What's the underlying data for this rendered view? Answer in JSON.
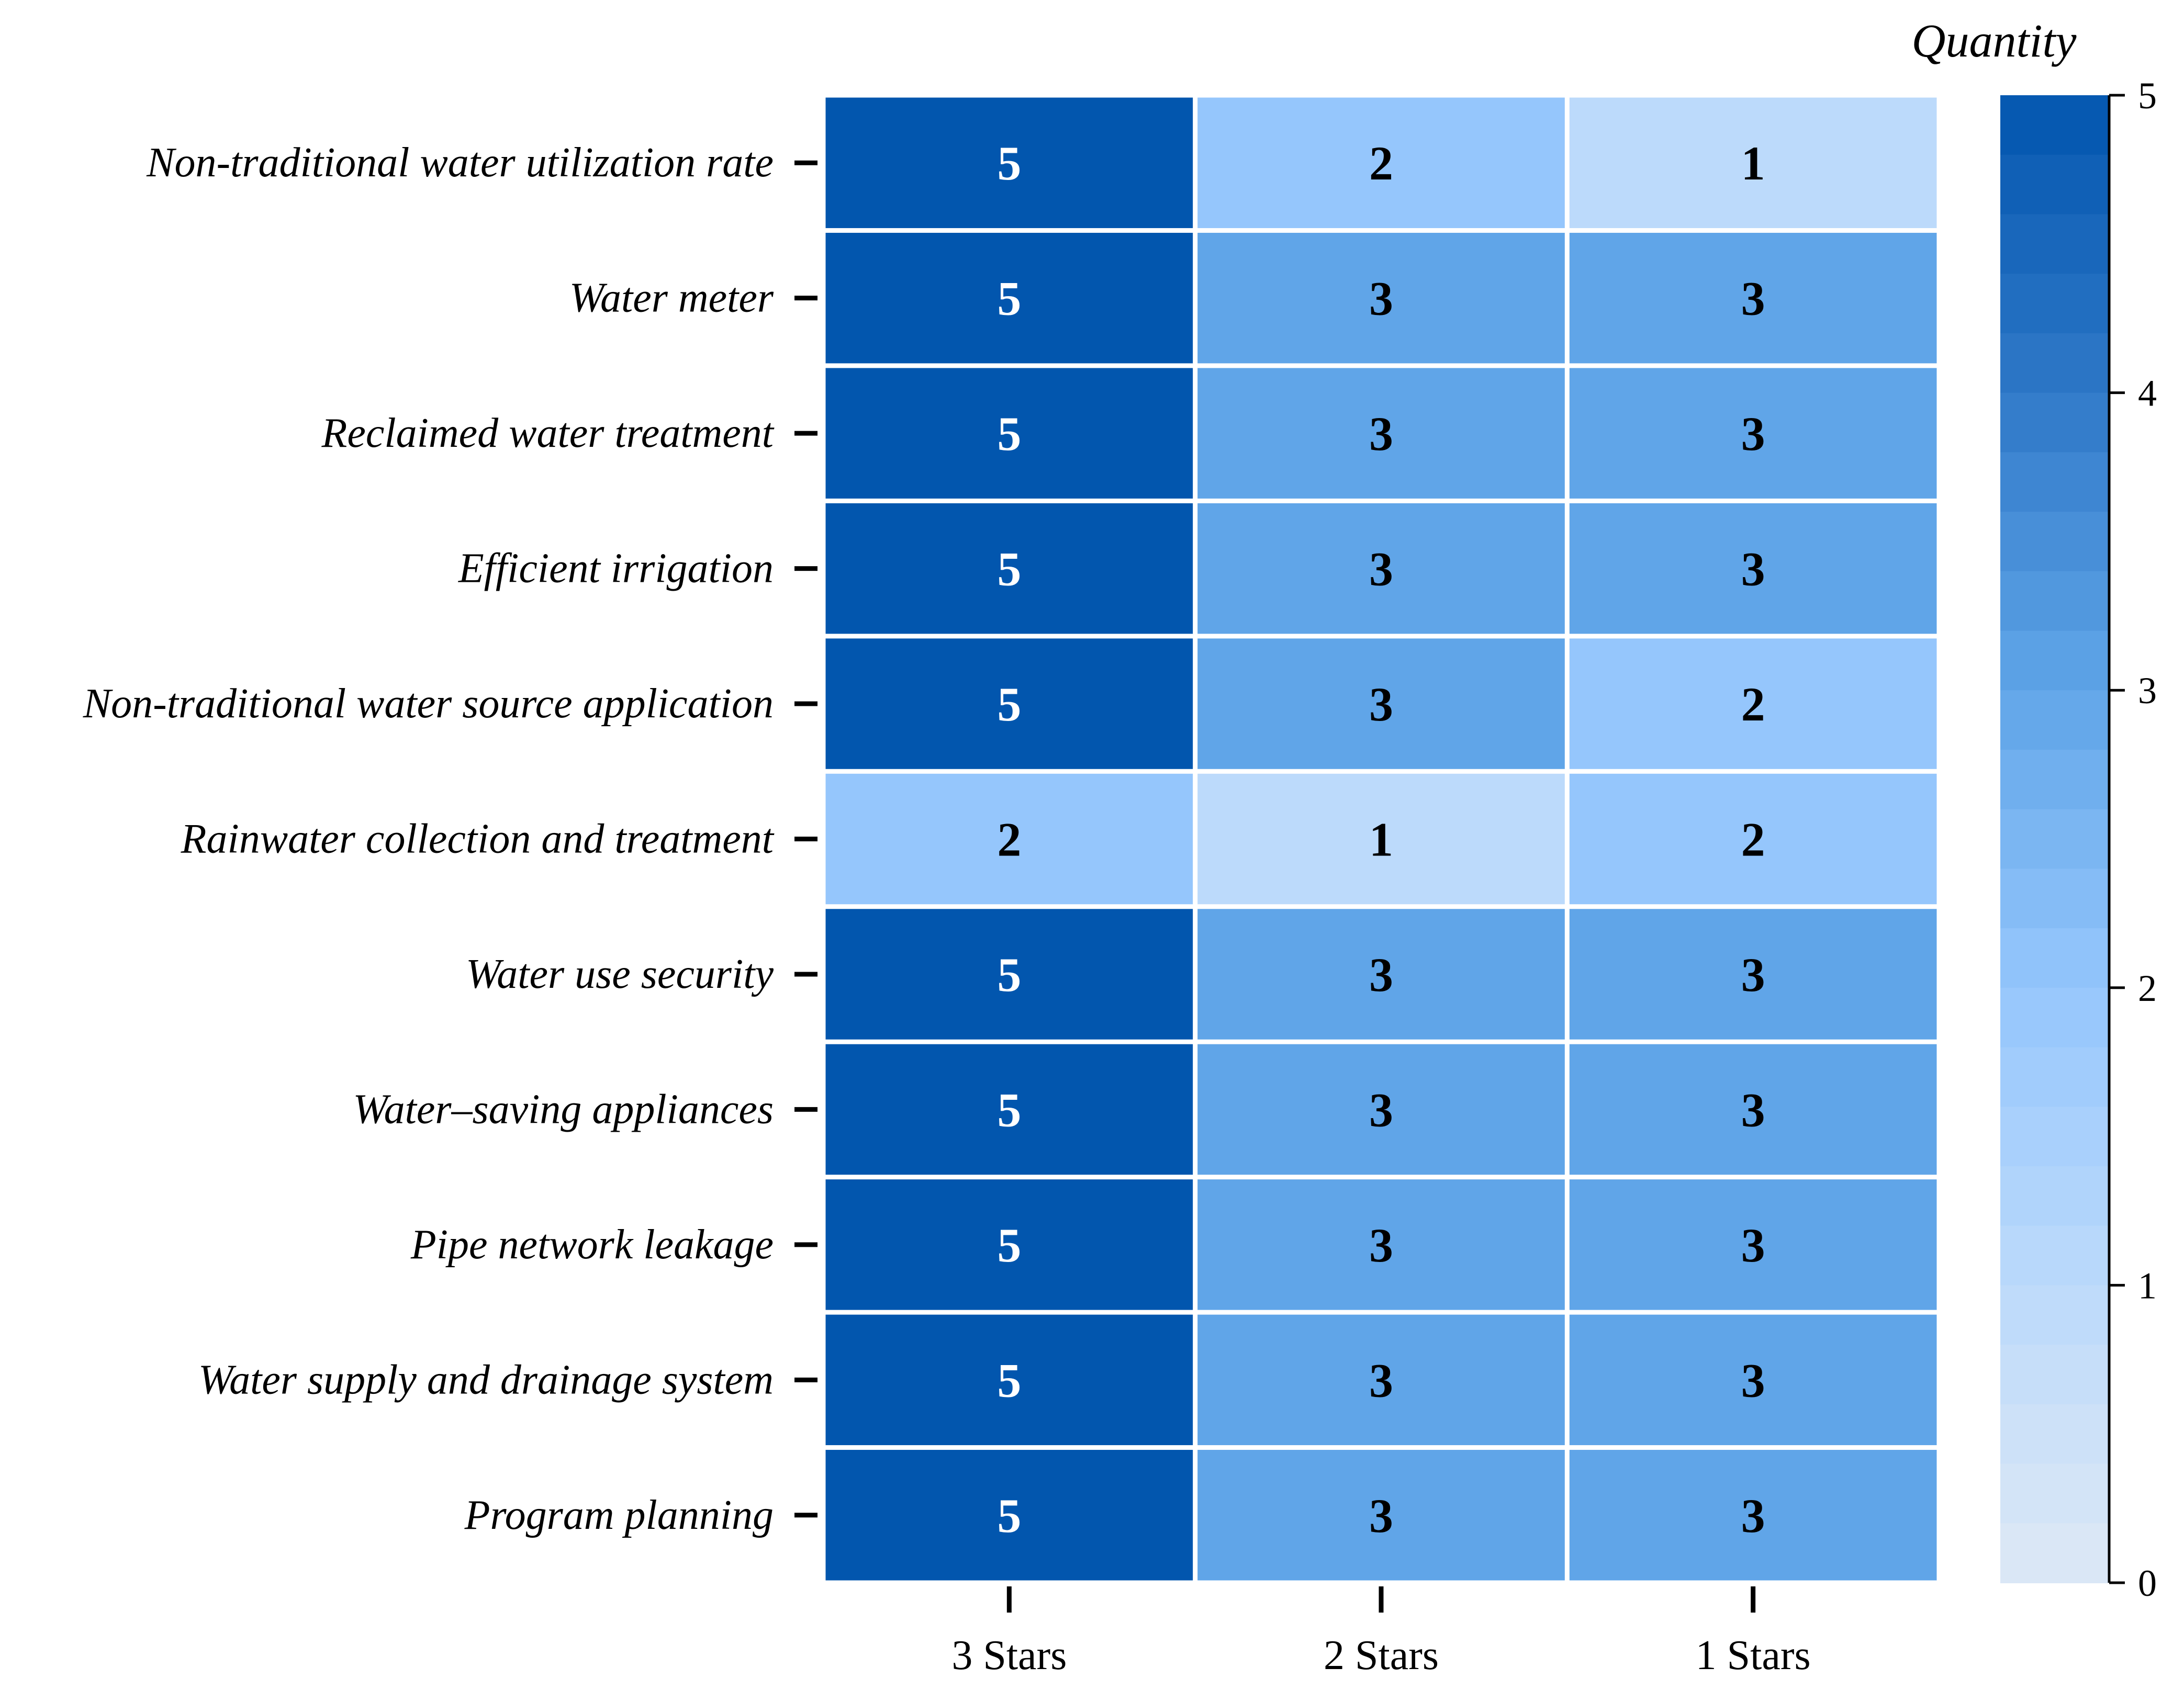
{
  "chart_data": {
    "type": "heatmap",
    "title": "",
    "rows": [
      "Non-traditional water utilization rate",
      "Water meter",
      "Reclaimed water treatment",
      "Efficient irrigation",
      "Non-traditional water source application",
      "Rainwater collection and treatment",
      "Water use security",
      "Water–saving appliances",
      "Pipe network leakage",
      "Water supply and drainage system",
      "Program planning"
    ],
    "columns": [
      "3 Stars",
      "2 Stars",
      "1 Stars"
    ],
    "values": [
      [
        5,
        2,
        1
      ],
      [
        5,
        3,
        3
      ],
      [
        5,
        3,
        3
      ],
      [
        5,
        3,
        3
      ],
      [
        5,
        3,
        2
      ],
      [
        2,
        1,
        2
      ],
      [
        5,
        3,
        3
      ],
      [
        5,
        3,
        3
      ],
      [
        5,
        3,
        3
      ],
      [
        5,
        3,
        3
      ],
      [
        5,
        3,
        3
      ]
    ],
    "colorbar": {
      "title": "Quantity",
      "range": [
        0,
        5
      ],
      "ticks": [
        "0",
        "1",
        "2",
        "3",
        "4",
        "5"
      ],
      "colors": {
        "0": "#dde8f5",
        "1": "#bcdafb",
        "2": "#95c6fc",
        "3": "#60a5e8",
        "4": "#2f78c8",
        "5": "#0256ae"
      }
    }
  }
}
